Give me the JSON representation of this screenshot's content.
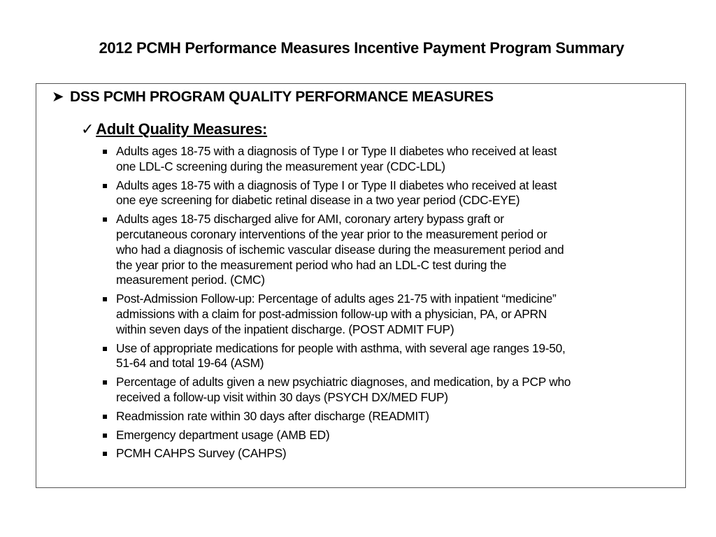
{
  "title": "2012 PCMH Performance Measures Incentive Payment Program Summary",
  "section": {
    "heading": "DSS PCMH PROGRAM QUALITY PERFORMANCE MEASURES",
    "subheading": "Adult Quality Measures:",
    "items": [
      {
        "lines": [
          "Adults ages 18-75 with a diagnosis of Type I or Type II diabetes who received at least",
          "one LDL-C screening during the measurement year (CDC-LDL)"
        ]
      },
      {
        "lines": [
          "Adults ages 18-75 with a diagnosis of Type I or Type II diabetes who received at least",
          "one eye screening for diabetic retinal disease in a two year period (CDC-EYE)"
        ]
      },
      {
        "lines": [
          "Adults ages 18-75 discharged alive for AMI, coronary artery bypass graft or",
          "percutaneous coronary interventions of the year prior to the measurement period or",
          "who had a diagnosis of ischemic vascular disease during the measurement period and",
          "the year prior to the measurement period who had an LDL-C test during the",
          "measurement period. (CMC)"
        ]
      },
      {
        "lines": [
          "Post-Admission Follow-up:  Percentage of adults ages 21-75 with inpatient “medicine”",
          "admissions with a claim for post-admission follow-up with a physician, PA, or APRN",
          "within seven days of the inpatient discharge. (POST ADMIT FUP)"
        ]
      },
      {
        "lines": [
          "Use of appropriate medications for people with asthma, with several age ranges 19-50,",
          "51-64 and total 19-64 (ASM)"
        ]
      },
      {
        "lines": [
          "Percentage of adults given a new psychiatric diagnoses, and medication, by a PCP who",
          "received a follow-up visit within 30 days (PSYCH DX/MED FUP)"
        ]
      },
      {
        "lines": [
          "Readmission rate within 30 days after discharge (READMIT)"
        ]
      },
      {
        "lines": [
          "Emergency department usage (AMB ED)"
        ]
      },
      {
        "lines": [
          "PCMH CAHPS Survey (CAHPS)"
        ]
      }
    ]
  },
  "icons": {
    "heading": "arrowhead-bullet",
    "subheading": "checkmark",
    "items": "square-bullet"
  }
}
